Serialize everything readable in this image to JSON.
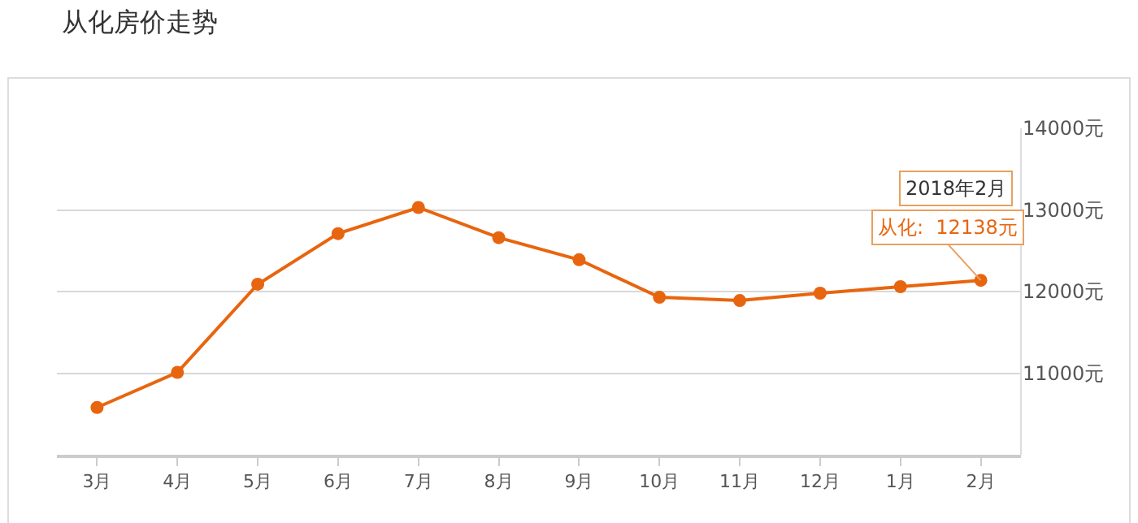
{
  "chart_data": {
    "type": "line",
    "title": "从化房价走势",
    "categories": [
      "3月",
      "4月",
      "5月",
      "6月",
      "7月",
      "8月",
      "9月",
      "10月",
      "11月",
      "12月",
      "1月",
      "2月"
    ],
    "series": [
      {
        "color": "#e8650f",
        "values": [
          10580,
          11010,
          12090,
          12710,
          13030,
          12660,
          12390,
          11930,
          11890,
          11980,
          12060,
          12138
        ]
      }
    ],
    "ylim": [
      10000,
      14000
    ],
    "yticks": [
      {
        "value": 11000,
        "label": "11000元"
      },
      {
        "value": 12000,
        "label": "12000元"
      },
      {
        "value": 13000,
        "label": "13000元"
      },
      {
        "value": 14000,
        "label": "14000元"
      }
    ],
    "grid": "y",
    "marker": "circle",
    "line_style": "solid",
    "annotations": [
      "2018年2月",
      {
        "text": "从化:  12138元",
        "x": "2月",
        "y": 12138
      }
    ]
  }
}
